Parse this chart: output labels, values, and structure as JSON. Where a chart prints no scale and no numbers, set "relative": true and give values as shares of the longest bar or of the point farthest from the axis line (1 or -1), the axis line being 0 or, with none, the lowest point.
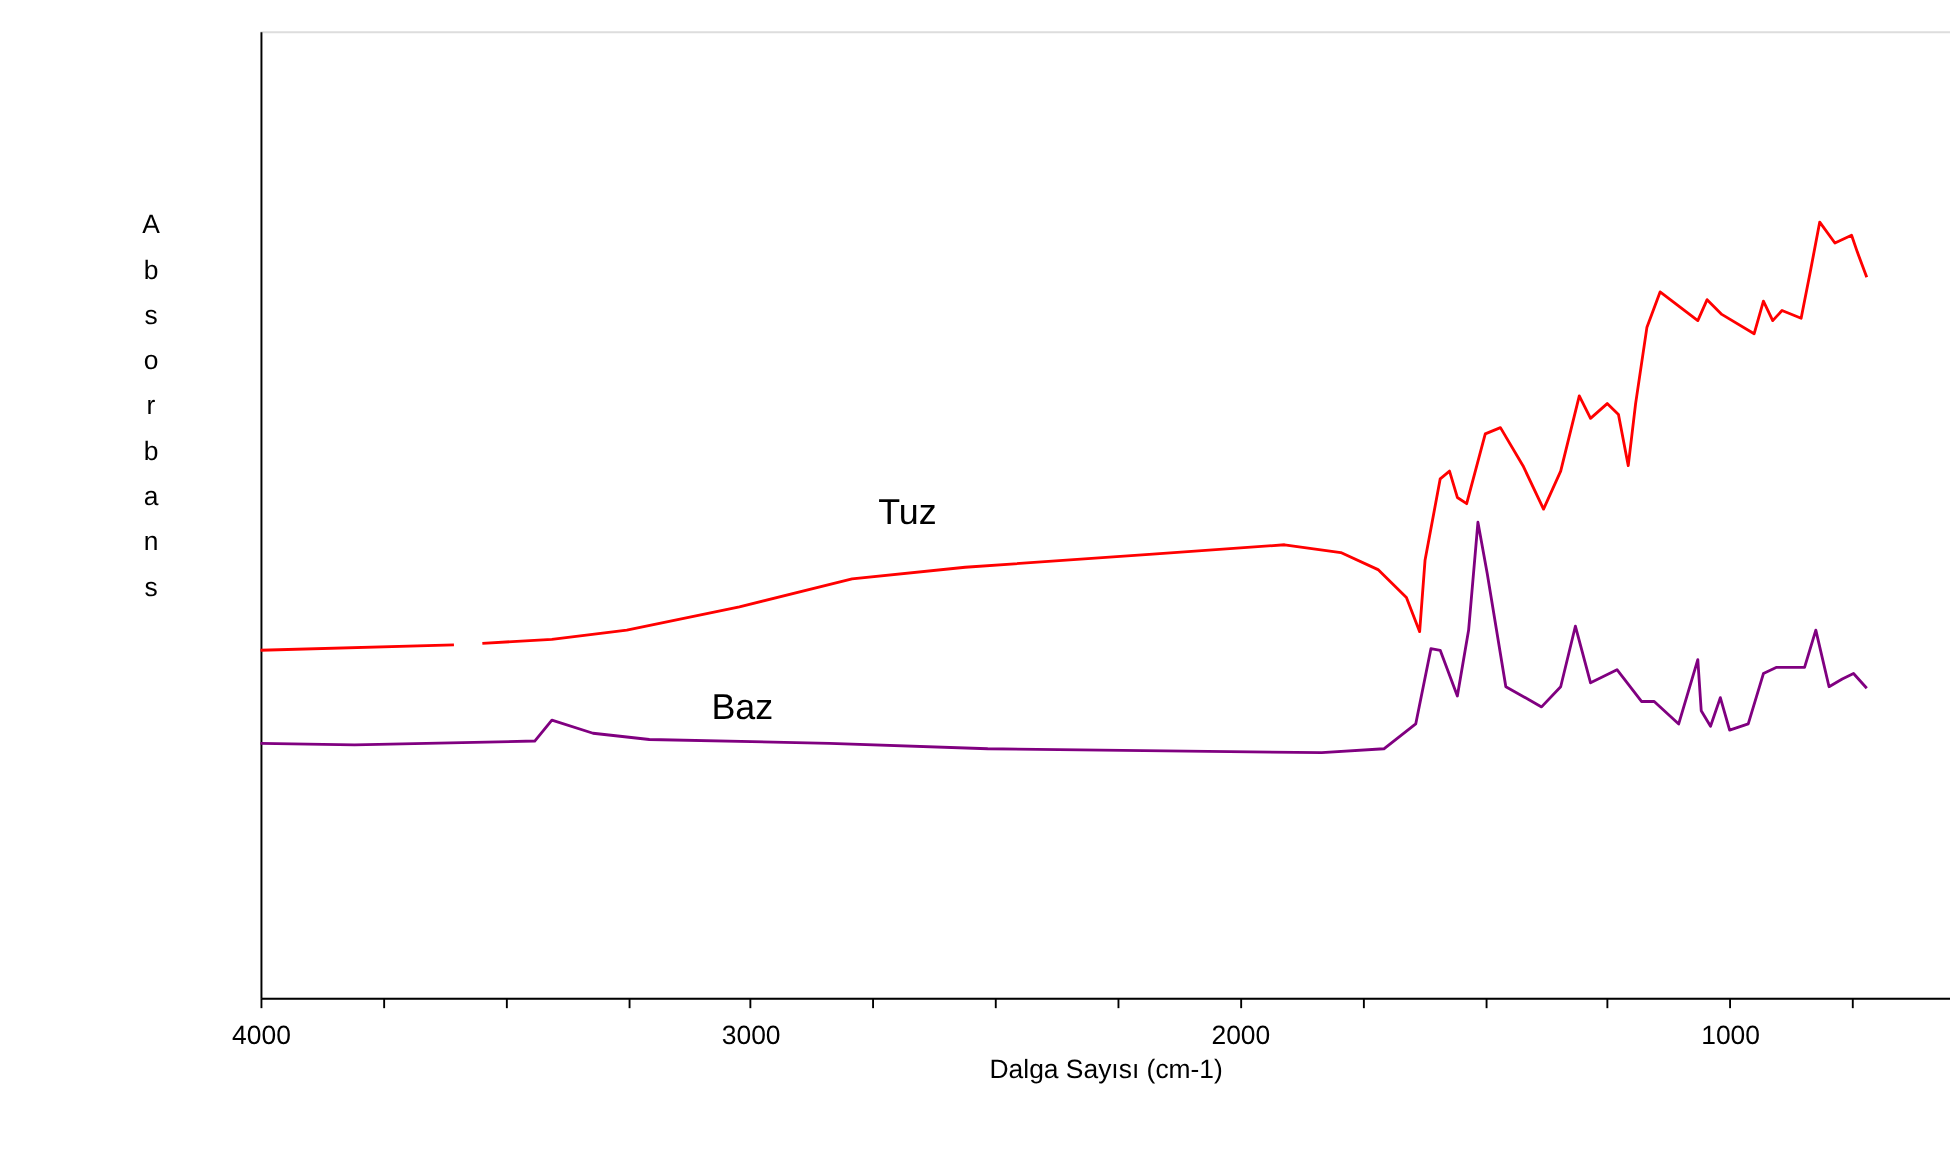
{
  "chart_data": {
    "type": "line",
    "relative": true,
    "xlabel": "Dalga Sayısı (cm-1)",
    "ylabel": "Absorbans",
    "xlim": [
      4000,
      550
    ],
    "xticks": [
      4000,
      {
        "value": 3750,
        "label": null
      },
      {
        "value": 3500,
        "label": null
      },
      {
        "value": 3250,
        "label": null
      },
      3000,
      {
        "value": 2750,
        "label": null
      },
      {
        "value": 2500,
        "label": null
      },
      {
        "value": 2250,
        "label": null
      },
      2000,
      {
        "value": 1750,
        "label": null
      },
      {
        "value": 1500,
        "label": null
      },
      {
        "value": 1250,
        "label": null
      },
      1000,
      {
        "value": 750,
        "label": null
      }
    ],
    "grid": false,
    "series": [
      {
        "name": "Tuz",
        "color": "#ff0000",
        "x": [
          4000,
          3605,
          3570,
          3547,
          3405,
          3252,
          3022,
          2792,
          2561,
          2178,
          1909,
          1794,
          1718,
          1660,
          1633,
          1622,
          1591,
          1572,
          1556,
          1537,
          1499,
          1468,
          1422,
          1380,
          1345,
          1307,
          1284,
          1250,
          1227,
          1207,
          1192,
          1169,
          1142,
          1065,
          1046,
          1016,
          950,
          931,
          912,
          893,
          854,
          835,
          816,
          785,
          751,
          739,
          720
        ],
        "values": [
          0.448,
          0.455,
          null,
          0.457,
          0.462,
          0.474,
          0.504,
          0.54,
          0.555,
          0.572,
          0.584,
          0.574,
          0.552,
          0.516,
          0.472,
          0.564,
          0.669,
          0.679,
          0.645,
          0.637,
          0.727,
          0.735,
          0.686,
          0.63,
          0.679,
          0.776,
          0.747,
          0.766,
          0.752,
          0.686,
          0.766,
          0.864,
          0.91,
          0.873,
          0.9,
          0.881,
          0.856,
          0.898,
          0.873,
          0.886,
          0.876,
          0.937,
          1.0,
          0.973,
          0.983,
          0.961,
          0.929
        ]
      },
      {
        "name": "Baz",
        "color": "#800080",
        "x": [
          4000,
          3808,
          3440,
          3405,
          3321,
          3206,
          2838,
          2515,
          1833,
          1706,
          1641,
          1610,
          1591,
          1556,
          1533,
          1514,
          1495,
          1457,
          1384,
          1345,
          1315,
          1284,
          1230,
          1180,
          1154,
          1104,
          1065,
          1058,
          1039,
          1019,
          1000,
          962,
          931,
          904,
          847,
          824,
          797,
          770,
          747,
          720
        ],
        "values": [
          0.328,
          0.326,
          0.331,
          0.358,
          0.341,
          0.333,
          0.328,
          0.321,
          0.316,
          0.321,
          0.353,
          0.45,
          0.448,
          0.389,
          0.474,
          0.613,
          0.547,
          0.401,
          0.375,
          0.401,
          0.479,
          0.406,
          0.423,
          0.382,
          0.382,
          0.353,
          0.436,
          0.37,
          0.35,
          0.387,
          0.345,
          0.353,
          0.418,
          0.426,
          0.426,
          0.474,
          0.401,
          0.411,
          0.418,
          0.399
        ]
      }
    ]
  }
}
